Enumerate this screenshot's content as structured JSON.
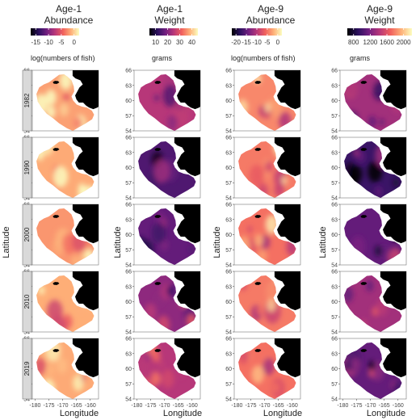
{
  "figure": {
    "columns": [
      {
        "title_line1": "Age-1",
        "title_line2": "Abundance",
        "legend_ticks": [
          "-15",
          "-10",
          "-5",
          "0"
        ],
        "legend_tick_values": [
          -15,
          -10,
          -5,
          0
        ],
        "legend_range": [
          -17,
          2
        ],
        "legend_label": "log(numbers of fish)"
      },
      {
        "title_line1": "Age-1",
        "title_line2": "Weight",
        "legend_ticks": [
          "10",
          "20",
          "30",
          "40"
        ],
        "legend_tick_values": [
          10,
          20,
          30,
          40
        ],
        "legend_range": [
          5,
          45
        ],
        "legend_label": "grams"
      },
      {
        "title_line1": "Age-9",
        "title_line2": "Abundance",
        "legend_ticks": [
          "-20",
          "-15",
          "-10",
          "-5",
          "0"
        ],
        "legend_tick_values": [
          -20,
          -15,
          -10,
          -5,
          0
        ],
        "legend_range": [
          -22,
          2
        ],
        "legend_label": "log(numbers of fish)"
      },
      {
        "title_line1": "Age-9",
        "title_line2": "Weight",
        "legend_ticks": [
          "800",
          "1200",
          "1600",
          "2000"
        ],
        "legend_tick_values": [
          800,
          1200,
          1600,
          2000
        ],
        "legend_range": [
          650,
          2200
        ],
        "legend_label": "grams"
      }
    ],
    "years": [
      "1982",
      "1990",
      "2000",
      "2010",
      "2019"
    ],
    "y_axis_label": "Latitude",
    "x_axis_label": "Longitude",
    "lat_ticks": [
      "54",
      "57",
      "60",
      "63",
      "66"
    ],
    "lat_tick_values": [
      54,
      57,
      60,
      63,
      66
    ],
    "lon_ticks": [
      "-180",
      "-175",
      "-170",
      "-165",
      "-160"
    ],
    "lon_tick_values": [
      -180,
      -175,
      -170,
      -165,
      -160
    ],
    "lon_range": [
      -181,
      -157
    ],
    "lat_range": [
      54,
      66
    ],
    "palette": [
      "#000004",
      "#2c115f",
      "#721f81",
      "#b73779",
      "#f1605d",
      "#feb078",
      "#fcfdbf"
    ]
  },
  "chart_data": {
    "type": "heatmap",
    "description_axes": {
      "x": "Longitude",
      "y": "Latitude"
    },
    "panel_mean_levels_0_to_1": [
      [
        0.8,
        0.5,
        0.75,
        0.45
      ],
      [
        0.82,
        0.25,
        0.72,
        0.2
      ],
      [
        0.78,
        0.3,
        0.7,
        0.3
      ],
      [
        0.83,
        0.4,
        0.72,
        0.45
      ],
      [
        0.82,
        0.5,
        0.7,
        0.3
      ]
    ]
  }
}
